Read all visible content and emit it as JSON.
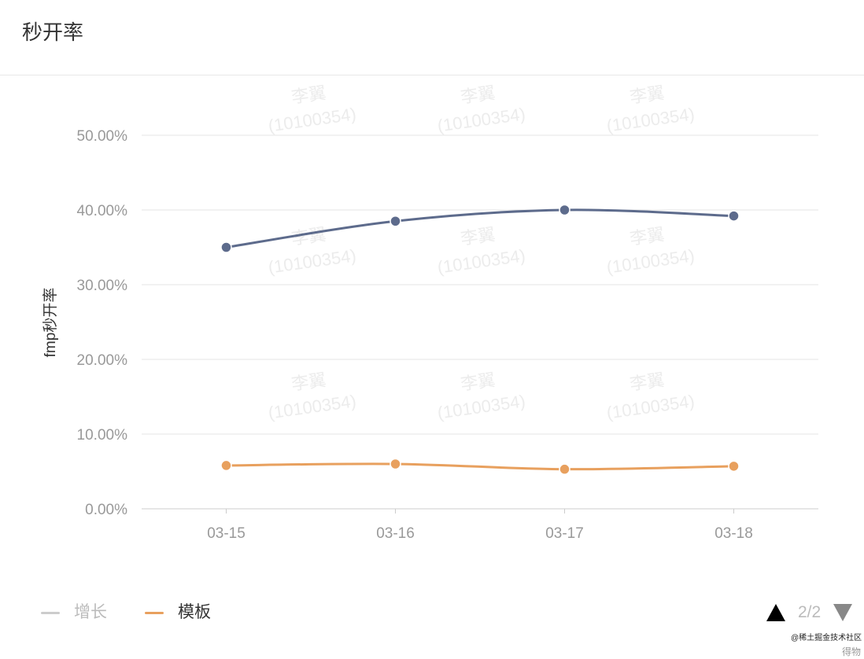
{
  "header": {
    "title": "秒开率"
  },
  "watermark": {
    "name": "李翼",
    "id": "(10100354)"
  },
  "chart_data": {
    "type": "line",
    "categories": [
      "03-15",
      "03-16",
      "03-17",
      "03-18"
    ],
    "ylabel": "fmp秒开率",
    "ylim": [
      0,
      50
    ],
    "yticks": [
      "0.00%",
      "10.00%",
      "20.00%",
      "30.00%",
      "40.00%",
      "50.00%"
    ],
    "grid": true,
    "smooth": true,
    "series": [
      {
        "values": [
          35.0,
          38.5,
          40.0,
          39.2
        ],
        "color": "#5d6b8c"
      },
      {
        "name": "模板",
        "values": [
          5.8,
          6.0,
          5.3,
          5.7
        ],
        "color": "#e8a05e"
      }
    ],
    "legend_position": "bottom-left"
  },
  "legend": {
    "items": [
      {
        "label": "增长",
        "color": "#cccccc",
        "disabled": true
      },
      {
        "label": "模板",
        "color": "#e8a05e",
        "disabled": false
      }
    ],
    "page": "2/2"
  },
  "credit": {
    "text": "@稀土掘金技术社区",
    "brand": "得物"
  }
}
